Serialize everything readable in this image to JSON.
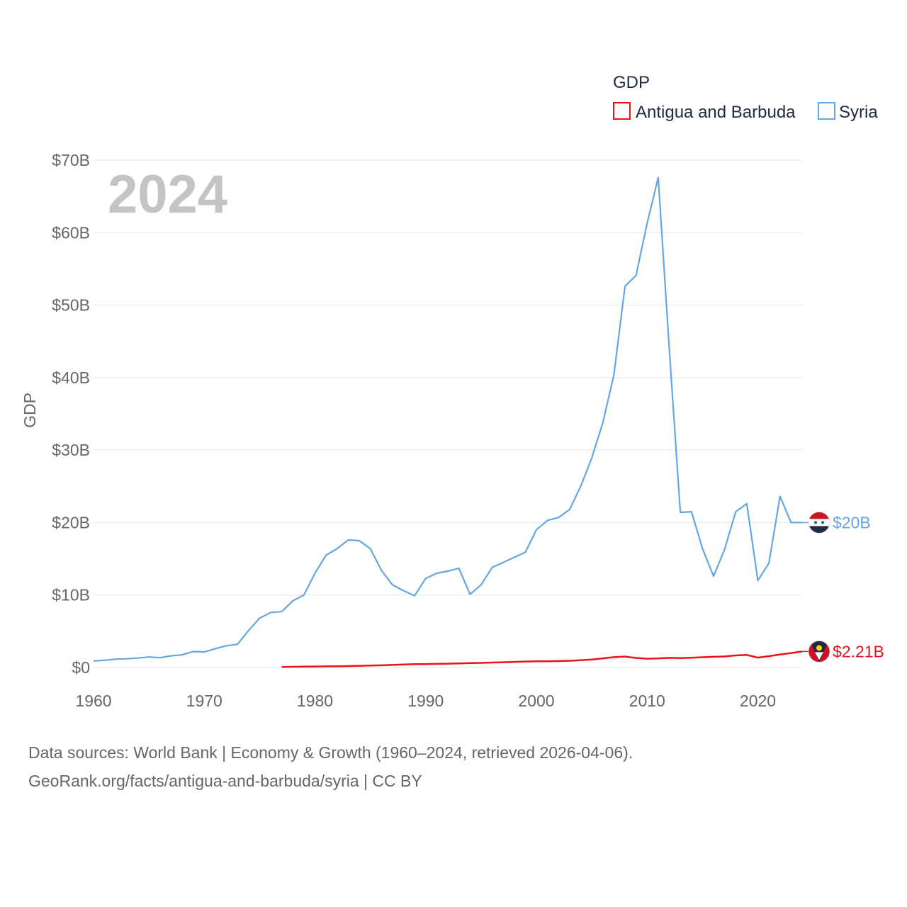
{
  "chart_data": {
    "type": "line",
    "ylabel": "GDP",
    "xlim": [
      1960,
      2024
    ],
    "ylim": [
      0,
      70
    ],
    "y_unit": "billion USD",
    "x_ticks": [
      1960,
      1970,
      1980,
      1990,
      2000,
      2010,
      2020
    ],
    "y_ticks": [
      {
        "value": 0,
        "label": "$0"
      },
      {
        "value": 10,
        "label": "$10B"
      },
      {
        "value": 20,
        "label": "$20B"
      },
      {
        "value": 30,
        "label": "$30B"
      },
      {
        "value": 40,
        "label": "$40B"
      },
      {
        "value": 50,
        "label": "$50B"
      },
      {
        "value": 60,
        "label": "$60B"
      },
      {
        "value": 70,
        "label": "$70B"
      }
    ],
    "grid": true,
    "legend": {
      "title": "GDP",
      "placement": "top-right"
    },
    "year_overlay": "2024",
    "series": [
      {
        "name": "Antigua and Barbuda",
        "color": "#e8141b",
        "end_label": "$2.21B",
        "points": [
          [
            1977,
            0.08
          ],
          [
            1978,
            0.1
          ],
          [
            1979,
            0.12
          ],
          [
            1980,
            0.14
          ],
          [
            1981,
            0.16
          ],
          [
            1982,
            0.18
          ],
          [
            1983,
            0.2
          ],
          [
            1984,
            0.23
          ],
          [
            1985,
            0.26
          ],
          [
            1986,
            0.3
          ],
          [
            1987,
            0.35
          ],
          [
            1988,
            0.42
          ],
          [
            1989,
            0.46
          ],
          [
            1990,
            0.48
          ],
          [
            1991,
            0.5
          ],
          [
            1992,
            0.53
          ],
          [
            1993,
            0.56
          ],
          [
            1994,
            0.62
          ],
          [
            1995,
            0.64
          ],
          [
            1996,
            0.68
          ],
          [
            1997,
            0.72
          ],
          [
            1998,
            0.77
          ],
          [
            1999,
            0.82
          ],
          [
            2000,
            0.86
          ],
          [
            2001,
            0.86
          ],
          [
            2002,
            0.89
          ],
          [
            2003,
            0.93
          ],
          [
            2004,
            1.0
          ],
          [
            2005,
            1.1
          ],
          [
            2006,
            1.26
          ],
          [
            2007,
            1.43
          ],
          [
            2008,
            1.51
          ],
          [
            2009,
            1.32
          ],
          [
            2010,
            1.21
          ],
          [
            2011,
            1.26
          ],
          [
            2012,
            1.33
          ],
          [
            2013,
            1.29
          ],
          [
            2014,
            1.35
          ],
          [
            2015,
            1.42
          ],
          [
            2016,
            1.48
          ],
          [
            2017,
            1.53
          ],
          [
            2018,
            1.66
          ],
          [
            2019,
            1.73
          ],
          [
            2020,
            1.37
          ],
          [
            2021,
            1.56
          ],
          [
            2022,
            1.8
          ],
          [
            2023,
            1.99
          ],
          [
            2024,
            2.21
          ]
        ]
      },
      {
        "name": "Syria",
        "color": "#64a7e2",
        "end_label": "$20B",
        "points": [
          [
            1960,
            0.9
          ],
          [
            1961,
            1.0
          ],
          [
            1962,
            1.15
          ],
          [
            1963,
            1.2
          ],
          [
            1964,
            1.3
          ],
          [
            1965,
            1.45
          ],
          [
            1966,
            1.35
          ],
          [
            1967,
            1.6
          ],
          [
            1968,
            1.75
          ],
          [
            1969,
            2.2
          ],
          [
            1970,
            2.15
          ],
          [
            1971,
            2.6
          ],
          [
            1972,
            3.0
          ],
          [
            1973,
            3.2
          ],
          [
            1974,
            5.1
          ],
          [
            1975,
            6.8
          ],
          [
            1976,
            7.6
          ],
          [
            1977,
            7.7
          ],
          [
            1978,
            9.2
          ],
          [
            1979,
            10.0
          ],
          [
            1980,
            13.0
          ],
          [
            1981,
            15.5
          ],
          [
            1982,
            16.4
          ],
          [
            1983,
            17.6
          ],
          [
            1984,
            17.5
          ],
          [
            1985,
            16.4
          ],
          [
            1986,
            13.4
          ],
          [
            1987,
            11.4
          ],
          [
            1988,
            10.6
          ],
          [
            1989,
            9.9
          ],
          [
            1990,
            12.3
          ],
          [
            1991,
            13.0
          ],
          [
            1992,
            13.3
          ],
          [
            1993,
            13.7
          ],
          [
            1994,
            10.1
          ],
          [
            1995,
            11.4
          ],
          [
            1996,
            13.8
          ],
          [
            1997,
            14.5
          ],
          [
            1998,
            15.2
          ],
          [
            1999,
            15.9
          ],
          [
            2000,
            19.0
          ],
          [
            2001,
            20.3
          ],
          [
            2002,
            20.7
          ],
          [
            2003,
            21.8
          ],
          [
            2004,
            25.0
          ],
          [
            2005,
            28.9
          ],
          [
            2006,
            33.8
          ],
          [
            2007,
            40.4
          ],
          [
            2008,
            52.6
          ],
          [
            2009,
            54.1
          ],
          [
            2010,
            61.3
          ],
          [
            2011,
            67.6
          ],
          [
            2012,
            44.0
          ],
          [
            2013,
            21.4
          ],
          [
            2014,
            21.5
          ],
          [
            2015,
            16.4
          ],
          [
            2016,
            12.6
          ],
          [
            2017,
            16.3
          ],
          [
            2018,
            21.5
          ],
          [
            2019,
            22.6
          ],
          [
            2020,
            12.0
          ],
          [
            2021,
            14.4
          ],
          [
            2022,
            23.6
          ],
          [
            2023,
            20.0
          ],
          [
            2024,
            20.0
          ]
        ]
      }
    ]
  },
  "flags": {
    "syria": {
      "colors": [
        "#ce1126",
        "#ffffff",
        "#1f2a44",
        "#007a3d"
      ]
    },
    "antigua": {
      "colors": [
        "#ce1126",
        "#1f2a44",
        "#fcd116",
        "#ffffff"
      ]
    }
  },
  "footer": {
    "line1": "Data sources: World Bank | Economy & Growth (1960–2024, retrieved 2026-04-06).",
    "line2": "GeoRank.org/facts/antigua-and-barbuda/syria | CC BY"
  }
}
